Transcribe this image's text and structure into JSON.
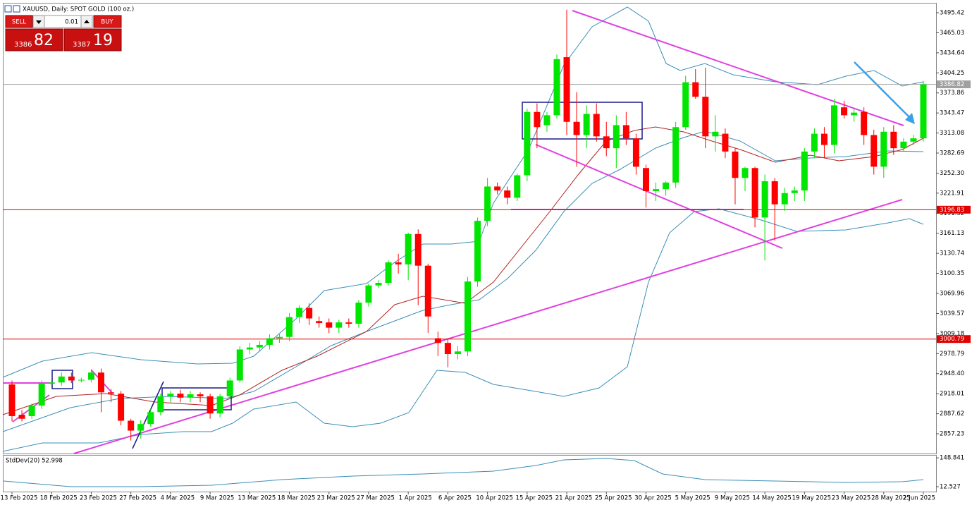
{
  "header": {
    "title": "XAUUSD, Daily:  SPOT GOLD (100 oz.)"
  },
  "trade_panel": {
    "sell": "SELL",
    "buy": "BUY",
    "lot": "0.01",
    "sell_price_main": "3386",
    "sell_price_big": "82",
    "buy_price_main": "3387",
    "buy_price_big": "19"
  },
  "chart_data": {
    "type": "candlestick",
    "categories": [
      "13 Feb 2025",
      null,
      null,
      null,
      "18 Feb 2025",
      null,
      null,
      null,
      "23 Feb 2025",
      null,
      null,
      null,
      "27 Feb 2025",
      null,
      null,
      null,
      "4 Mar 2025",
      null,
      null,
      null,
      "9 Mar 2025",
      null,
      null,
      null,
      "13 Mar 2025",
      null,
      null,
      null,
      "18 Mar 2025",
      null,
      null,
      null,
      "23 Mar 2025",
      null,
      null,
      null,
      "27 Mar 2025",
      null,
      null,
      null,
      "1 Apr 2025",
      null,
      null,
      null,
      "6 Apr 2025",
      null,
      null,
      null,
      "10 Apr 2025",
      null,
      null,
      null,
      "15 Apr 2025",
      null,
      null,
      null,
      "21 Apr 2025",
      null,
      null,
      null,
      "25 Apr 2025",
      null,
      null,
      null,
      "30 Apr 2025",
      null,
      null,
      null,
      "5 May 2025",
      null,
      null,
      null,
      "9 May 2025",
      null,
      null,
      null,
      "14 May 2025",
      null,
      null,
      null,
      "19 May 2025",
      null,
      null,
      null,
      "23 May 2025",
      null,
      null,
      null,
      "28 May 2025",
      null,
      null,
      null,
      "2 Jun 2025"
    ],
    "open": [
      2932,
      2886,
      2884,
      2900,
      2933,
      2935,
      2944,
      2938,
      2939,
      2950,
      2920,
      2918,
      2877,
      2862,
      2872,
      2890,
      2914,
      2918,
      2912,
      2917,
      2914,
      2888,
      2914,
      2938,
      2985,
      2988,
      2992,
      3002,
      3004,
      3034,
      3048,
      3028,
      3026,
      3018,
      3026,
      3024,
      3056,
      3082,
      3086,
      3117,
      3114,
      3160,
      3112,
      3002,
      2995,
      2978,
      2982,
      3088,
      3180,
      3232,
      3226,
      3215,
      3249,
      3345,
      3325,
      3340,
      3428,
      3330,
      3310,
      3342,
      3308,
      3290,
      3325,
      3305,
      3260,
      3225,
      3228,
      3238,
      3322,
      3390,
      3368,
      3308,
      3312,
      3285,
      3245,
      3260,
      3185,
      3240,
      3205,
      3222,
      3226,
      3285,
      3312,
      3295,
      3352,
      3340,
      3345,
      3310,
      3262,
      3315,
      3290,
      3300,
      3305
    ],
    "high": [
      2938,
      2893,
      2903,
      2938,
      2940,
      2950,
      2950,
      2942,
      2955,
      2956,
      2925,
      2922,
      2880,
      2878,
      2895,
      2918,
      2922,
      2924,
      2922,
      2920,
      2918,
      2918,
      2942,
      2990,
      2995,
      2998,
      3008,
      3008,
      3040,
      3052,
      3055,
      3035,
      3032,
      3030,
      3032,
      3060,
      3085,
      3090,
      3120,
      3130,
      3162,
      3167,
      3115,
      3012,
      3000,
      2990,
      3095,
      3185,
      3245,
      3238,
      3232,
      3252,
      3350,
      3358,
      3345,
      3432,
      3500,
      3375,
      3355,
      3358,
      3330,
      3340,
      3345,
      3312,
      3265,
      3238,
      3240,
      3330,
      3400,
      3410,
      3412,
      3340,
      3320,
      3290,
      3262,
      3262,
      3250,
      3245,
      3230,
      3232,
      3290,
      3320,
      3322,
      3365,
      3362,
      3350,
      3352,
      3318,
      3322,
      3325,
      3305,
      3310,
      3392
    ],
    "low": [
      2876,
      2876,
      2880,
      2895,
      2928,
      2930,
      2934,
      2935,
      2935,
      2890,
      2905,
      2870,
      2847,
      2850,
      2868,
      2885,
      2905,
      2905,
      2905,
      2905,
      2880,
      2882,
      2910,
      2935,
      2978,
      2982,
      2985,
      2995,
      2998,
      3025,
      3022,
      3018,
      3010,
      3010,
      3018,
      3018,
      3050,
      3078,
      3082,
      3100,
      3090,
      3052,
      3010,
      2975,
      2958,
      2970,
      2975,
      3080,
      3172,
      3220,
      3205,
      3210,
      3240,
      3290,
      3315,
      3335,
      3310,
      3262,
      3290,
      3300,
      3278,
      3260,
      3295,
      3250,
      3200,
      3210,
      3218,
      3230,
      3318,
      3365,
      3290,
      3285,
      3275,
      3205,
      3225,
      3170,
      3120,
      3150,
      3195,
      3210,
      3210,
      3275,
      3275,
      3282,
      3335,
      3330,
      3295,
      3250,
      3245,
      3280,
      3285,
      3295,
      3300
    ],
    "close": [
      2884,
      2880,
      2900,
      2933,
      2935,
      2944,
      2938,
      2939,
      2950,
      2920,
      2918,
      2877,
      2862,
      2872,
      2890,
      2914,
      2918,
      2912,
      2917,
      2914,
      2888,
      2914,
      2938,
      2985,
      2988,
      2992,
      3002,
      3004,
      3034,
      3048,
      3032,
      3025,
      3018,
      3026,
      3024,
      3056,
      3082,
      3086,
      3117,
      3114,
      3160,
      3112,
      3035,
      2995,
      2978,
      2982,
      3088,
      3180,
      3232,
      3226,
      3215,
      3249,
      3345,
      3322,
      3340,
      3425,
      3330,
      3310,
      3342,
      3308,
      3290,
      3325,
      3305,
      3262,
      3225,
      3228,
      3238,
      3322,
      3390,
      3368,
      3308,
      3315,
      3285,
      3245,
      3260,
      3185,
      3240,
      3205,
      3222,
      3226,
      3285,
      3312,
      3295,
      3355,
      3340,
      3344,
      3310,
      3262,
      3315,
      3290,
      3300,
      3305,
      3386.82
    ],
    "up_color": "#00e600",
    "down_color": "#ff0000",
    "ylim": [
      2827.3,
      3510.4
    ],
    "yticks": [
      3495.42,
      3465.03,
      3434.64,
      3404.25,
      3373.86,
      3343.47,
      3313.08,
      3282.69,
      {
        "value": 3252.3,
        "label": "3252.30"
      },
      3221.91,
      3191.52,
      3161.13,
      3130.74,
      3100.35,
      3069.96,
      3039.57,
      3009.18,
      2978.79,
      {
        "value": 2948.4,
        "label": "2948.40"
      },
      2918.01,
      2887.62,
      2857.23
    ],
    "hlines": [
      {
        "value": 3386.82,
        "color": "#a0a0a0"
      },
      {
        "value": 3196.83,
        "color": "#e00000"
      },
      {
        "value": 3000.79,
        "color": "#e00000"
      }
    ],
    "indicator": {
      "label": "StdDev(20) 52.998",
      "ylim": [
        -4,
        156
      ],
      "yticks": [
        148.841,
        12.527
      ]
    }
  }
}
